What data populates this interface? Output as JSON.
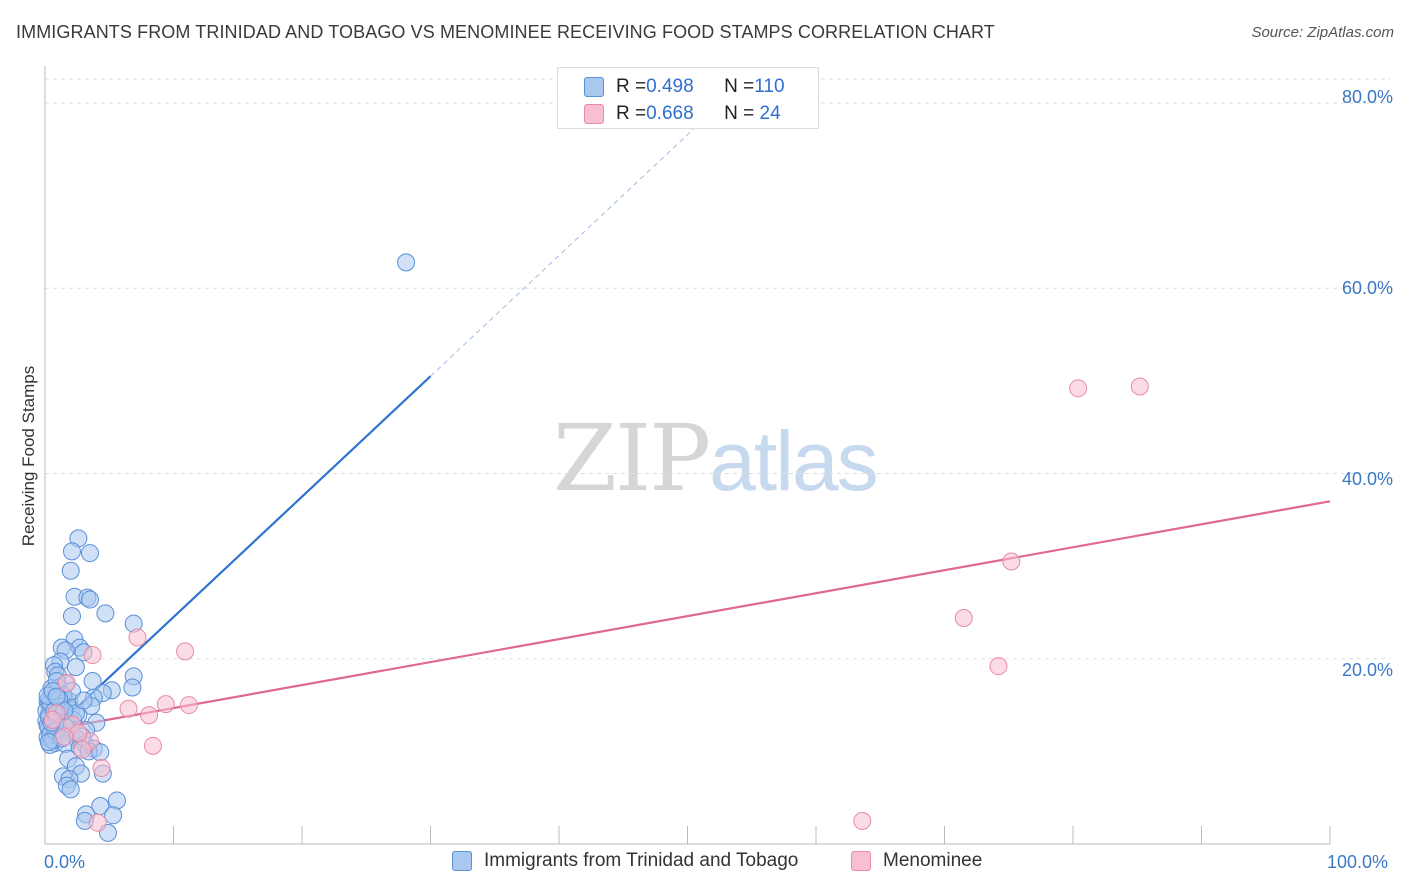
{
  "header": {
    "title": "IMMIGRANTS FROM TRINIDAD AND TOBAGO VS MENOMINEE RECEIVING FOOD STAMPS CORRELATION CHART",
    "source": "Source: ZipAtlas.com"
  },
  "watermark": {
    "zip": "ZIP",
    "atlas": "atlas"
  },
  "stats": [
    {
      "r_label": "R = ",
      "r_value": "0.498",
      "n_label": "N = ",
      "n_value": "110"
    },
    {
      "r_label": "R = ",
      "r_value": "0.668",
      "n_label": "N = ",
      "n_value": " 24"
    }
  ],
  "legend": [
    {
      "label": "Immigrants from Trinidad and Tobago"
    },
    {
      "label": "Menominee"
    }
  ],
  "chart_data": {
    "type": "scatter",
    "title": "IMMIGRANTS FROM TRINIDAD AND TOBAGO VS MENOMINEE RECEIVING FOOD STAMPS CORRELATION CHART",
    "xlabel": "",
    "ylabel": "Receiving Food Stamps",
    "xlim": [
      0,
      100
    ],
    "ylim": [
      0,
      84
    ],
    "x_tick_labels": [
      "0.0%",
      "100.0%"
    ],
    "y_ticks": [
      20,
      40,
      60,
      80
    ],
    "y_tick_labels": [
      "20.0%",
      "40.0%",
      "60.0%",
      "80.0%"
    ],
    "grid": true,
    "colors": {
      "blue_fill": "#a9c8f0",
      "blue_stroke": "#5b8fd6",
      "blue_line": "#2f72d2",
      "pink_fill": "#f7bfd0",
      "pink_stroke": "#e88aa8",
      "pink_line": "#e06890",
      "tick_label": "#3b78c4"
    },
    "series": [
      {
        "name": "Immigrants from Trinidad and Tobago",
        "color": "blue",
        "trendline": {
          "x": [
            0,
            30
          ],
          "y": [
            11.5,
            50.5
          ],
          "dashed_to": [
            53,
            80.5
          ]
        },
        "points": [
          [
            28.1,
            62.8
          ],
          [
            2.6,
            33.0
          ],
          [
            2.1,
            31.6
          ],
          [
            3.5,
            31.4
          ],
          [
            2.0,
            29.5
          ],
          [
            2.3,
            26.7
          ],
          [
            3.3,
            26.6
          ],
          [
            3.5,
            26.4
          ],
          [
            2.1,
            24.6
          ],
          [
            4.7,
            24.9
          ],
          [
            6.9,
            23.8
          ],
          [
            2.3,
            22.1
          ],
          [
            1.3,
            21.2
          ],
          [
            2.7,
            21.2
          ],
          [
            3.0,
            20.7
          ],
          [
            1.6,
            20.9
          ],
          [
            1.2,
            19.7
          ],
          [
            0.7,
            19.3
          ],
          [
            2.4,
            19.1
          ],
          [
            0.8,
            18.6
          ],
          [
            1.0,
            18.2
          ],
          [
            6.9,
            18.1
          ],
          [
            3.7,
            17.6
          ],
          [
            1.6,
            17.3
          ],
          [
            1.1,
            16.9
          ],
          [
            5.2,
            16.6
          ],
          [
            6.8,
            16.9
          ],
          [
            4.5,
            16.3
          ],
          [
            0.5,
            16.2
          ],
          [
            0.8,
            15.8
          ],
          [
            1.5,
            15.9
          ],
          [
            3.8,
            15.8
          ],
          [
            0.2,
            15.4
          ],
          [
            1.1,
            15.2
          ],
          [
            1.8,
            15.1
          ],
          [
            0.4,
            14.6
          ],
          [
            0.9,
            14.6
          ],
          [
            2.0,
            14.5
          ],
          [
            3.6,
            14.9
          ],
          [
            0.3,
            14.0
          ],
          [
            0.6,
            13.8
          ],
          [
            1.3,
            13.5
          ],
          [
            2.6,
            13.9
          ],
          [
            0.1,
            13.3
          ],
          [
            0.7,
            12.9
          ],
          [
            1.5,
            12.8
          ],
          [
            4.0,
            13.1
          ],
          [
            0.3,
            12.5
          ],
          [
            2.0,
            12.1
          ],
          [
            3.2,
            12.3
          ],
          [
            0.5,
            12.1
          ],
          [
            1.1,
            11.9
          ],
          [
            0.2,
            11.5
          ],
          [
            2.5,
            11.3
          ],
          [
            0.8,
            10.9
          ],
          [
            1.6,
            10.8
          ],
          [
            3.1,
            10.8
          ],
          [
            3.8,
            10.3
          ],
          [
            0.4,
            10.7
          ],
          [
            2.7,
            10.4
          ],
          [
            3.4,
            10.0
          ],
          [
            4.3,
            9.9
          ],
          [
            1.8,
            9.2
          ],
          [
            2.4,
            8.4
          ],
          [
            4.5,
            7.6
          ],
          [
            1.4,
            7.3
          ],
          [
            2.8,
            7.6
          ],
          [
            1.9,
            7.0
          ],
          [
            1.7,
            6.3
          ],
          [
            2.0,
            5.9
          ],
          [
            5.6,
            4.7
          ],
          [
            4.3,
            4.1
          ],
          [
            3.2,
            3.2
          ],
          [
            5.3,
            3.1
          ],
          [
            3.1,
            2.5
          ],
          [
            4.9,
            1.2
          ],
          [
            0.3,
            15.6
          ],
          [
            0.6,
            14.9
          ],
          [
            1.3,
            14.2
          ],
          [
            0.2,
            12.8
          ],
          [
            0.9,
            13.2
          ],
          [
            0.4,
            11.8
          ],
          [
            1.9,
            15.4
          ],
          [
            0.5,
            16.8
          ],
          [
            2.2,
            13.4
          ],
          [
            0.7,
            15.0
          ],
          [
            1.4,
            16.1
          ],
          [
            0.1,
            14.4
          ],
          [
            1.0,
            12.4
          ],
          [
            0.6,
            11.2
          ],
          [
            2.9,
            11.6
          ],
          [
            0.3,
            13.7
          ],
          [
            1.2,
            14.8
          ],
          [
            0.8,
            12.2
          ],
          [
            1.7,
            13.0
          ],
          [
            0.4,
            15.2
          ],
          [
            2.1,
            16.5
          ],
          [
            0.9,
            17.6
          ],
          [
            1.6,
            12.6
          ],
          [
            0.2,
            16.0
          ],
          [
            0.5,
            13.1
          ],
          [
            1.1,
            15.7
          ],
          [
            0.7,
            14.3
          ],
          [
            2.4,
            14.1
          ],
          [
            3.0,
            15.5
          ],
          [
            1.3,
            11.4
          ],
          [
            0.6,
            16.5
          ],
          [
            0.3,
            11.0
          ],
          [
            1.5,
            14.4
          ],
          [
            0.9,
            15.9
          ]
        ]
      },
      {
        "name": "Menominee",
        "color": "pink",
        "trendline": {
          "x": [
            0,
            100
          ],
          "y": [
            12.2,
            37.0
          ]
        },
        "points": [
          [
            80.4,
            49.2
          ],
          [
            85.2,
            49.4
          ],
          [
            75.2,
            30.5
          ],
          [
            71.5,
            24.4
          ],
          [
            74.2,
            19.2
          ],
          [
            7.2,
            22.3
          ],
          [
            10.9,
            20.8
          ],
          [
            3.7,
            20.4
          ],
          [
            11.2,
            15.0
          ],
          [
            9.4,
            15.1
          ],
          [
            8.1,
            13.9
          ],
          [
            6.5,
            14.6
          ],
          [
            2.1,
            12.9
          ],
          [
            3.5,
            11.1
          ],
          [
            8.4,
            10.6
          ],
          [
            4.4,
            8.2
          ],
          [
            63.6,
            2.5
          ],
          [
            4.1,
            2.3
          ],
          [
            1.7,
            17.4
          ],
          [
            2.6,
            12.0
          ],
          [
            0.9,
            14.1
          ],
          [
            1.5,
            11.6
          ],
          [
            0.6,
            13.4
          ],
          [
            2.9,
            10.2
          ]
        ]
      }
    ]
  }
}
